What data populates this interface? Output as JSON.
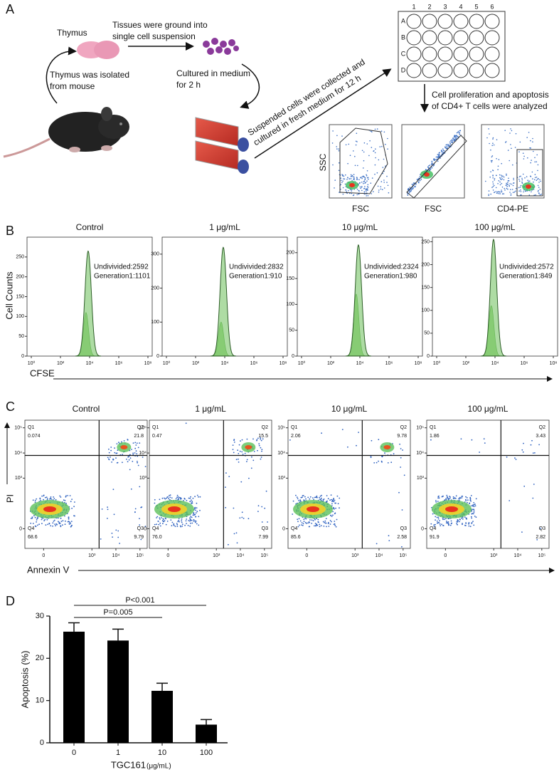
{
  "panels": {
    "a": {
      "label": "A",
      "thymus": "Thymus",
      "step0": [
        "Thymus was isolated",
        "from mouse"
      ],
      "step1": [
        "Tissues were ground into",
        "single cell suspension"
      ],
      "step2": [
        "Cultured in medium",
        " for 2 h"
      ],
      "step3": [
        "Suspended cells were collected and",
        "cultured in fresh medium for 12 h"
      ],
      "step4": [
        "Cell proliferation and apoptosis",
        "of CD4+ T cells were analyzed"
      ],
      "plate_columns": [
        "1",
        "2",
        "3",
        "4",
        "5",
        "6"
      ],
      "plate_rows": [
        "A",
        "B",
        "C",
        "D"
      ],
      "gating_axes": [
        "SSC",
        "FSC",
        "FSC",
        "CD4-PE"
      ]
    },
    "b": {
      "label": "B",
      "ylabel": "Cell Counts",
      "xlabel": "CFSE",
      "xlim": [
        0,
        8
      ],
      "xticks": [
        {
          "value": 0,
          "label": "10⁰"
        },
        {
          "value": 2,
          "label": "10²"
        },
        {
          "value": 4,
          "label": "10⁴"
        },
        {
          "value": 6,
          "label": "10⁶"
        },
        {
          "value": 8,
          "label": "10⁸"
        }
      ],
      "plots": [
        {
          "title": "Control",
          "ylim": [
            0,
            300
          ],
          "yticks": [
            0,
            50,
            100,
            150,
            200,
            250
          ],
          "peak_x": 3.9,
          "undivided_peak": 265,
          "generation1_peak": 110,
          "annotations": [
            "Undivivided:2592",
            "Generation1:1101"
          ]
        },
        {
          "title": "1 μg/mL",
          "ylim": [
            0,
            350
          ],
          "yticks": [
            0,
            100,
            200,
            300
          ],
          "peak_x": 3.9,
          "undivided_peak": 320,
          "generation1_peak": 100,
          "annotations": [
            "Undivivided:2832",
            "Generation1:910"
          ]
        },
        {
          "title": "10 μg/mL",
          "ylim": [
            0,
            230
          ],
          "yticks": [
            0,
            50,
            100,
            150,
            200
          ],
          "peak_x": 3.9,
          "undivided_peak": 215,
          "generation1_peak": 120,
          "annotations": [
            "Undivivided:2324",
            "Generation1:980"
          ]
        },
        {
          "title": "100 μg/mL",
          "ylim": [
            0,
            260
          ],
          "yticks": [
            0,
            50,
            100,
            150,
            200,
            250
          ],
          "peak_x": 3.9,
          "undivided_peak": 255,
          "generation1_peak": 110,
          "annotations": [
            "Undivivided:2572",
            "Generation1:849"
          ]
        }
      ]
    },
    "c": {
      "label": "C",
      "ylabel": "PI",
      "xlabel": "Annexin V",
      "lim": [
        -50,
        200000
      ],
      "ticks": [
        0,
        {
          "value": 1000,
          "label": "10³"
        },
        {
          "value": 10000,
          "label": "10⁴"
        },
        {
          "value": 100000,
          "label": "10⁵"
        }
      ],
      "gate": [
        2000,
        8000
      ],
      "plots": [
        {
          "title": "Control",
          "quadrants": [
            {
              "name": "Q1",
              "value": "0.074"
            },
            {
              "name": "Q2",
              "value": "21.8"
            },
            {
              "name": "Q3",
              "value": "9.79"
            },
            {
              "name": "Q4",
              "value": "68.6"
            }
          ]
        },
        {
          "title": "1 μg/mL",
          "quadrants": [
            {
              "name": "Q1",
              "value": "0.47"
            },
            {
              "name": "Q2",
              "value": "15.5"
            },
            {
              "name": "Q3",
              "value": "7.99"
            },
            {
              "name": "Q4",
              "value": "76.0"
            }
          ]
        },
        {
          "title": "10 μg/mL",
          "quadrants": [
            {
              "name": "Q1",
              "value": "2.06"
            },
            {
              "name": "Q2",
              "value": "9.78"
            },
            {
              "name": "Q3",
              "value": "2.58"
            },
            {
              "name": "Q4",
              "value": "85.6"
            }
          ]
        },
        {
          "title": "100 μg/mL",
          "quadrants": [
            {
              "name": "Q1",
              "value": "1.86"
            },
            {
              "name": "Q2",
              "value": "3.43"
            },
            {
              "name": "Q3",
              "value": "2.82"
            },
            {
              "name": "Q4",
              "value": "91.9"
            }
          ]
        }
      ]
    }
  },
  "chart_data": {
    "type": "bar",
    "panel_label": "D",
    "ylabel": "Apoptosis (%)",
    "xlabel": "TGC161",
    "xlabel_unit": "(μg/mL)",
    "categories": [
      "0",
      "1",
      "10",
      "100"
    ],
    "values": [
      26.3,
      24.2,
      12.3,
      4.3
    ],
    "errors": [
      2.1,
      2.7,
      1.8,
      1.2
    ],
    "color": "#000000",
    "ylim": [
      0,
      30
    ],
    "yticks": [
      0,
      10,
      20,
      30
    ],
    "comparisons": [
      {
        "label": "P<0.001",
        "between": [
          "0",
          "100"
        ]
      },
      {
        "label": "P=0.005",
        "between": [
          "0",
          "10"
        ]
      }
    ]
  }
}
